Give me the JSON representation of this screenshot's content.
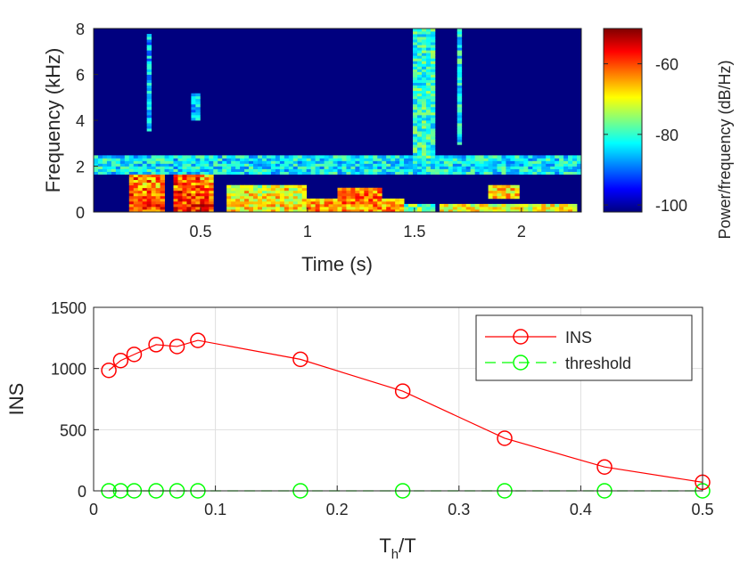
{
  "chart_data": [
    {
      "type": "heatmap",
      "title": "",
      "xlabel": "Time (s)",
      "ylabel": "Frequency (kHz)",
      "xlim": [
        0,
        2.28
      ],
      "ylim": [
        0,
        8
      ],
      "xticks": [
        0.5,
        1,
        1.5,
        2
      ],
      "xtick_labels": [
        "0.5",
        "1",
        "1.5",
        "2"
      ],
      "yticks": [
        0,
        2,
        4,
        6,
        8
      ],
      "ytick_labels": [
        "0",
        "2",
        "4",
        "6",
        "8"
      ],
      "colorbar": {
        "label": "Power/frequency (dB/Hz)",
        "range": [
          -102,
          -50
        ],
        "ticks": [
          -60,
          -80,
          -100
        ],
        "tick_labels": [
          "-60",
          "-80",
          "-100"
        ],
        "colormap": "jet"
      },
      "background_level_db": -97,
      "features": [
        {
          "kind": "band",
          "t_start": 0.0,
          "t_end": 2.28,
          "f_low": 1.6,
          "f_high": 2.5,
          "level_db": -83
        },
        {
          "kind": "burst",
          "t_start": 0.17,
          "t_end": 0.34,
          "f_low": 0.0,
          "f_high": 1.6,
          "level_db": -60
        },
        {
          "kind": "burst",
          "t_start": 0.38,
          "t_end": 0.56,
          "f_low": 0.0,
          "f_high": 1.6,
          "level_db": -58
        },
        {
          "kind": "burst",
          "t_start": 0.62,
          "t_end": 1.0,
          "f_low": 0.0,
          "f_high": 1.2,
          "level_db": -68
        },
        {
          "kind": "burst",
          "t_start": 1.0,
          "t_end": 1.45,
          "f_low": 0.0,
          "f_high": 0.6,
          "level_db": -64
        },
        {
          "kind": "burst",
          "t_start": 1.15,
          "t_end": 1.35,
          "f_low": 0.4,
          "f_high": 1.1,
          "level_db": -62
        },
        {
          "kind": "burst",
          "t_start": 1.45,
          "t_end": 1.6,
          "f_low": 0.0,
          "f_high": 0.3,
          "level_db": -76
        },
        {
          "kind": "burst",
          "t_start": 1.62,
          "t_end": 2.25,
          "f_low": 0.0,
          "f_high": 0.35,
          "level_db": -70
        },
        {
          "kind": "burst",
          "t_start": 1.85,
          "t_end": 1.98,
          "f_low": 0.6,
          "f_high": 1.2,
          "level_db": -66
        },
        {
          "kind": "streak",
          "t_start": 1.5,
          "t_end": 1.6,
          "f_low": 2.4,
          "f_high": 8.0,
          "level_db": -80
        },
        {
          "kind": "streak",
          "t_start": 1.69,
          "t_end": 1.72,
          "f_low": 3.0,
          "f_high": 8.0,
          "level_db": -82
        },
        {
          "kind": "streak",
          "t_start": 0.24,
          "t_end": 0.26,
          "f_low": 3.5,
          "f_high": 7.8,
          "level_db": -86
        },
        {
          "kind": "streak",
          "t_start": 0.45,
          "t_end": 0.49,
          "f_low": 4.0,
          "f_high": 5.2,
          "level_db": -86
        }
      ]
    },
    {
      "type": "line",
      "title": "",
      "xlabel": "T_h/T",
      "ylabel": "INS",
      "xlim": [
        0,
        0.5
      ],
      "ylim": [
        0,
        1500
      ],
      "grid": true,
      "xticks": [
        0,
        0.1,
        0.2,
        0.3,
        0.4,
        0.5
      ],
      "xtick_labels": [
        "0",
        "0.1",
        "0.2",
        "0.3",
        "0.4",
        "0.5"
      ],
      "yticks": [
        0,
        500,
        1000,
        1500
      ],
      "ytick_labels": [
        "0",
        "500",
        "1000",
        "1500"
      ],
      "legend_position": "top-right",
      "series": [
        {
          "name": "INS",
          "color": "#ff0000",
          "line_style": "solid",
          "marker": "circle",
          "x": [
            0.0125,
            0.0222,
            0.0333,
            0.0513,
            0.0685,
            0.0856,
            0.1698,
            0.2538,
            0.3375,
            0.4195,
            0.5
          ],
          "y": [
            985,
            1065,
            1115,
            1195,
            1180,
            1230,
            1075,
            815,
            430,
            195,
            70
          ]
        },
        {
          "name": "threshold",
          "color": "#00ff00",
          "line_style": "dashed",
          "marker": "circle",
          "x": [
            0.0125,
            0.0222,
            0.0333,
            0.0513,
            0.0685,
            0.0856,
            0.1698,
            0.2538,
            0.3375,
            0.4195,
            0.5
          ],
          "y": [
            0,
            0,
            0,
            0,
            0,
            0,
            0,
            0,
            0,
            0,
            0
          ]
        }
      ]
    }
  ]
}
